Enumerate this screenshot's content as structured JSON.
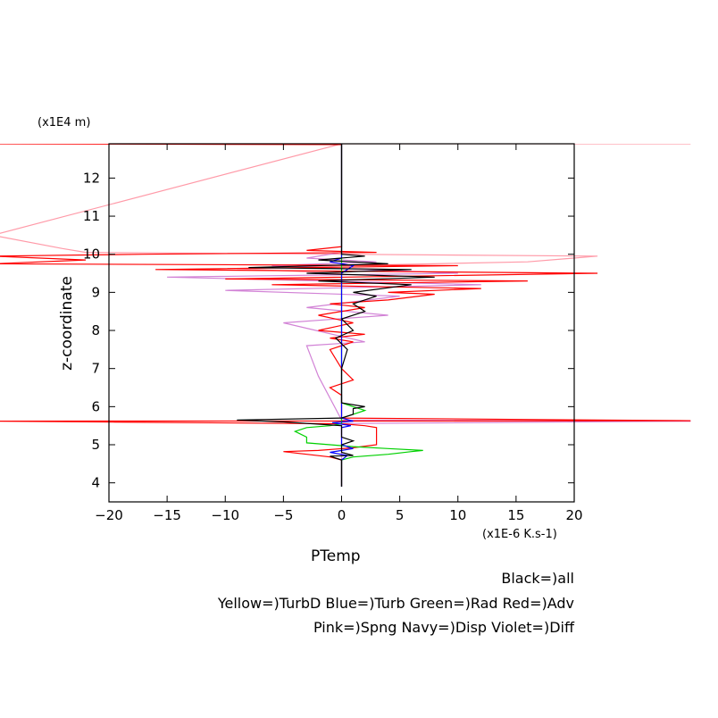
{
  "chart_data": {
    "type": "line",
    "orientation": "profile",
    "title": "",
    "xlabel": "PTemp",
    "ylabel": "z-coordinate",
    "x_unit": "(x1E-6 K.s-1)",
    "y_unit": "(x1E4 m)",
    "xlim": [
      -20,
      20
    ],
    "ylim": [
      3.5,
      12.9
    ],
    "xticks": [
      -20,
      -15,
      -10,
      -5,
      0,
      5,
      10,
      15,
      20
    ],
    "yticks": [
      4,
      5,
      6,
      7,
      8,
      9,
      10,
      11,
      12
    ],
    "grid": false,
    "legend": {
      "lines": [
        "Black=)all",
        "Yellow=)TurbD Blue=)Turb Green=)Rad Red=)Adv",
        "Pink=)Spng Navy=)Disp Violet=)Diff"
      ],
      "placement": "below-right"
    },
    "series": [
      {
        "key": "pink",
        "color": "#ff9aa8",
        "points": [
          [
            0,
            3.9
          ],
          [
            0,
            5.5
          ],
          [
            0,
            5.62
          ],
          [
            30,
            5.62
          ],
          [
            0,
            5.63
          ],
          [
            0,
            9.5
          ],
          [
            -9,
            9.62
          ],
          [
            0,
            9.7
          ],
          [
            16,
            9.8
          ],
          [
            22,
            9.95
          ],
          [
            0,
            10.0
          ],
          [
            -22,
            10.05
          ],
          [
            -24,
            10.15
          ],
          [
            -30,
            10.5
          ],
          [
            0,
            12.9
          ],
          [
            30,
            12.9
          ]
        ]
      },
      {
        "key": "violet",
        "color": "#d283d6",
        "points": [
          [
            0,
            3.9
          ],
          [
            0,
            5.5
          ],
          [
            -2,
            5.55
          ],
          [
            30,
            5.62
          ],
          [
            0,
            5.65
          ],
          [
            -2,
            6.8
          ],
          [
            -3,
            7.6
          ],
          [
            2,
            7.7
          ],
          [
            -5,
            8.2
          ],
          [
            4,
            8.4
          ],
          [
            -3,
            8.6
          ],
          [
            5,
            8.9
          ],
          [
            -10,
            9.05
          ],
          [
            12,
            9.2
          ],
          [
            -15,
            9.4
          ],
          [
            10,
            9.5
          ],
          [
            -6,
            9.7
          ],
          [
            3,
            9.8
          ],
          [
            -3,
            9.9
          ],
          [
            0,
            10.05
          ],
          [
            0,
            12.9
          ]
        ]
      },
      {
        "key": "red",
        "color": "#ff0000",
        "points": [
          [
            0,
            3.9
          ],
          [
            0,
            4.6
          ],
          [
            -1,
            4.68
          ],
          [
            -3,
            4.75
          ],
          [
            -5,
            4.82
          ],
          [
            -2,
            4.85
          ],
          [
            1,
            4.92
          ],
          [
            3,
            5.0
          ],
          [
            3,
            5.3
          ],
          [
            3,
            5.45
          ],
          [
            2,
            5.5
          ],
          [
            0,
            5.55
          ],
          [
            -30,
            5.62
          ],
          [
            30,
            5.63
          ],
          [
            0,
            5.7
          ],
          [
            0,
            6.3
          ],
          [
            -1,
            6.5
          ],
          [
            1,
            6.7
          ],
          [
            0,
            7.0
          ],
          [
            -1,
            7.5
          ],
          [
            1,
            7.7
          ],
          [
            -1,
            7.8
          ],
          [
            2,
            7.9
          ],
          [
            -2,
            8.0
          ],
          [
            1,
            8.2
          ],
          [
            -2,
            8.4
          ],
          [
            2,
            8.6
          ],
          [
            -1,
            8.7
          ],
          [
            4,
            8.8
          ],
          [
            8,
            8.95
          ],
          [
            4,
            9.0
          ],
          [
            12,
            9.1
          ],
          [
            -6,
            9.2
          ],
          [
            16,
            9.3
          ],
          [
            -10,
            9.35
          ],
          [
            22,
            9.5
          ],
          [
            -16,
            9.6
          ],
          [
            10,
            9.7
          ],
          [
            -30,
            9.75
          ],
          [
            -22,
            9.85
          ],
          [
            -30,
            9.95
          ],
          [
            -17,
            10.0
          ],
          [
            3,
            10.05
          ],
          [
            -3,
            10.1
          ],
          [
            0,
            10.2
          ],
          [
            0,
            12.88
          ],
          [
            -30,
            12.9
          ]
        ]
      },
      {
        "key": "green",
        "color": "#00d000",
        "points": [
          [
            0,
            3.9
          ],
          [
            0,
            4.6
          ],
          [
            1,
            4.68
          ],
          [
            4,
            4.75
          ],
          [
            6,
            4.82
          ],
          [
            7,
            4.85
          ],
          [
            4,
            4.9
          ],
          [
            1,
            4.95
          ],
          [
            -1,
            5.0
          ],
          [
            -3,
            5.05
          ],
          [
            -3,
            5.2
          ],
          [
            -4,
            5.35
          ],
          [
            -3,
            5.45
          ],
          [
            -1,
            5.5
          ],
          [
            0,
            5.55
          ],
          [
            0,
            5.7
          ],
          [
            1,
            5.8
          ],
          [
            2,
            5.9
          ],
          [
            1,
            6.0
          ],
          [
            0,
            6.1
          ],
          [
            0,
            7.0
          ],
          [
            0,
            8.0
          ],
          [
            0,
            9.0
          ],
          [
            0,
            10.0
          ],
          [
            0,
            12.9
          ]
        ]
      },
      {
        "key": "blue",
        "color": "#0000ff",
        "points": [
          [
            0,
            3.9
          ],
          [
            0,
            4.6
          ],
          [
            0.5,
            4.72
          ],
          [
            -1,
            4.8
          ],
          [
            1,
            4.9
          ],
          [
            0,
            5.0
          ],
          [
            0,
            5.45
          ],
          [
            0.8,
            5.5
          ],
          [
            -0.8,
            5.58
          ],
          [
            1,
            5.62
          ],
          [
            0,
            5.7
          ],
          [
            0,
            9.5
          ],
          [
            1,
            9.7
          ],
          [
            -1,
            9.8
          ],
          [
            0,
            9.9
          ],
          [
            0,
            12.9
          ]
        ]
      },
      {
        "key": "black",
        "color": "#000000",
        "points": [
          [
            0,
            3.9
          ],
          [
            0,
            4.6
          ],
          [
            -1,
            4.7
          ],
          [
            1,
            4.72
          ],
          [
            0,
            4.8
          ],
          [
            0,
            5.0
          ],
          [
            1,
            5.1
          ],
          [
            0,
            5.2
          ],
          [
            0,
            5.5
          ],
          [
            -5,
            5.6
          ],
          [
            -9,
            5.65
          ],
          [
            0,
            5.7
          ],
          [
            1,
            5.8
          ],
          [
            1,
            5.95
          ],
          [
            2,
            6.0
          ],
          [
            0,
            6.1
          ],
          [
            0,
            7.0
          ],
          [
            0.5,
            7.5
          ],
          [
            -0.5,
            7.8
          ],
          [
            1,
            8.0
          ],
          [
            0,
            8.3
          ],
          [
            2,
            8.5
          ],
          [
            1,
            8.7
          ],
          [
            3,
            8.9
          ],
          [
            1,
            9.0
          ],
          [
            6,
            9.2
          ],
          [
            -2,
            9.3
          ],
          [
            8,
            9.4
          ],
          [
            -3,
            9.5
          ],
          [
            6,
            9.6
          ],
          [
            -8,
            9.65
          ],
          [
            4,
            9.75
          ],
          [
            -2,
            9.85
          ],
          [
            2,
            9.95
          ],
          [
            0,
            10.0
          ],
          [
            0,
            12.9
          ]
        ]
      }
    ]
  }
}
